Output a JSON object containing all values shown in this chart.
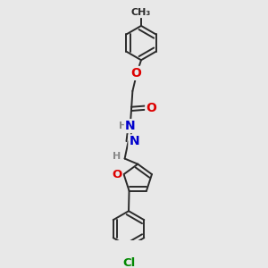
{
  "bg_color": "#e8e8e8",
  "bond_color": "#2a2a2a",
  "bond_width": 1.4,
  "atom_colors": {
    "O": "#dd0000",
    "N": "#0000cc",
    "Cl": "#008800",
    "C": "#2a2a2a",
    "H": "#888888"
  },
  "font_size": 8.5,
  "fig_size": [
    3.0,
    3.0
  ],
  "dpi": 100,
  "xlim": [
    0,
    10
  ],
  "ylim": [
    0,
    10
  ]
}
